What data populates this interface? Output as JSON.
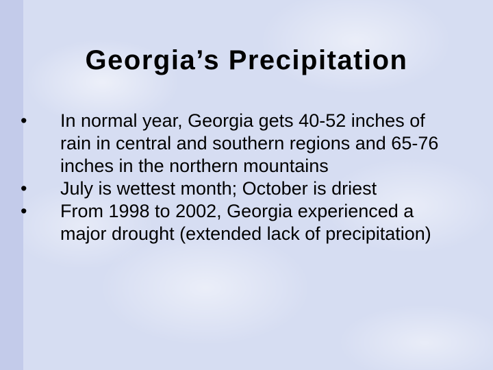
{
  "title": "Georgia’s Precipitation",
  "bullets": [
    "In normal year, Georgia gets 40-52 inches of rain in central and southern regions and 65-76 inches in the northern mountains",
    "July is wettest month; October is driest",
    "From 1998 to 2002, Georgia experienced a major drought (extended lack of precipitation)"
  ]
}
